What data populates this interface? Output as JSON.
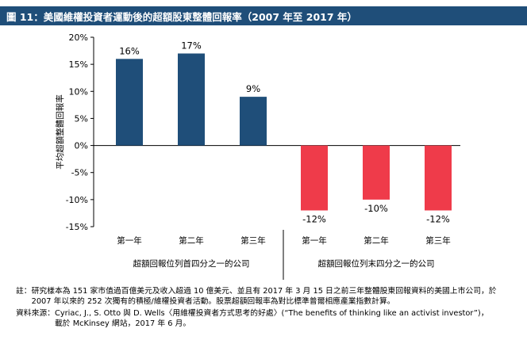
{
  "title": "圖 11：美國維權投資者運動後的超額股東整體回報率（2007 年至 2017 年）",
  "colors": {
    "title_bg": "#1f4e79",
    "positive_bar": "#1f4e79",
    "negative_bar": "#ef3b4a"
  },
  "chart_data": {
    "type": "bar",
    "ylabel": "平均超額整體回報率",
    "ylim": [
      -15,
      20
    ],
    "yticks": [
      20,
      15,
      10,
      5,
      0,
      -5,
      -10,
      -15
    ],
    "ytick_labels": [
      "20%",
      "15%",
      "10%",
      "5%",
      "0%",
      "-5%",
      "-10%",
      "-15%"
    ],
    "categories": [
      "第一年",
      "第二年",
      "第三年",
      "第一年",
      "第二年",
      "第三年"
    ],
    "values": [
      16,
      17,
      9,
      -12,
      -10,
      -12
    ],
    "value_labels": [
      "16%",
      "17%",
      "9%",
      "-12%",
      "-10%",
      "-12%"
    ],
    "groups": [
      {
        "label": "超額回報位列首四分之一的公司"
      },
      {
        "label": "超額回報位列末四分之一的公司"
      }
    ]
  },
  "notes": {
    "note_label": "註：",
    "note_text": "研究樣本為 151 家市值過百億美元及收入超過 10 億美元、並且有 2017 年 3 月 15 日之前三年整體股東回報資料的美國上市公司，於 2007 年以來的 252 次獨有的積極/維權投資者活動。股票超額回報率為對比標準普爾相應產業指數計算。",
    "source_label": "資料來源：",
    "source_line1": "Cyriac, J., S. Otto 與 D. Wells〈用維權投資者方式思考的好處〉(“The benefits of thinking like an activist investor”)，",
    "source_line2": "載於 McKinsey 網站，2017 年 6 月。"
  }
}
